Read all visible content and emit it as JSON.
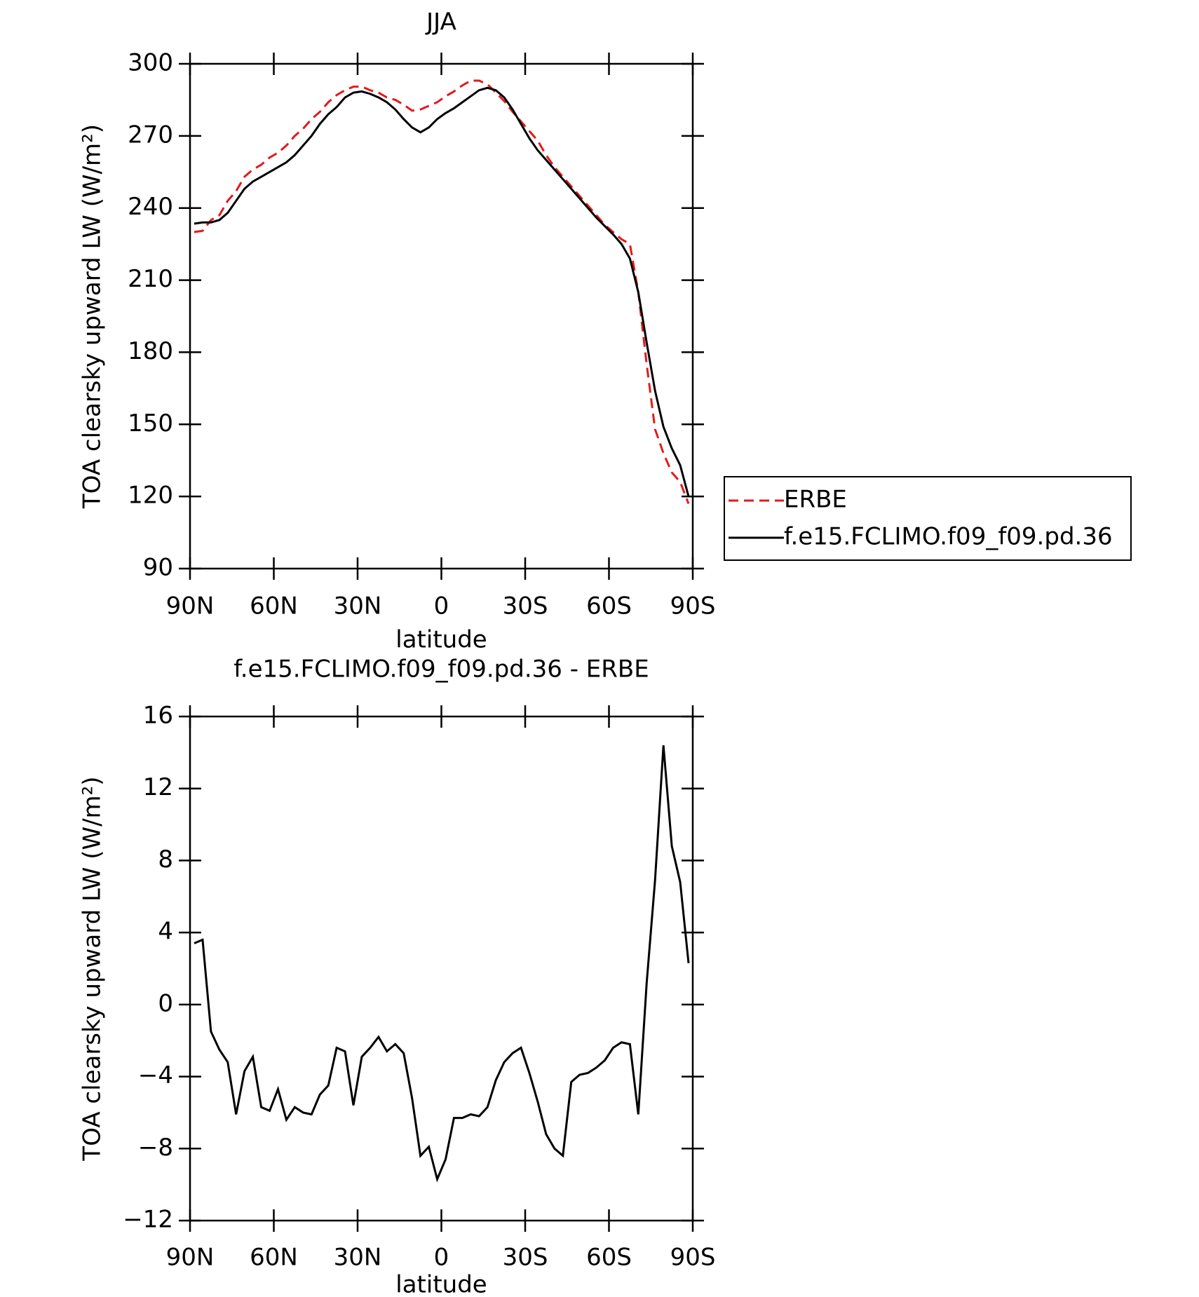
{
  "chart_data": [
    {
      "type": "line",
      "title": "JJA",
      "x_label": "latitude",
      "y_label": "TOA clearsky upward LW (W/m²)",
      "x": [
        88.5,
        85.5,
        82.5,
        79.5,
        76.5,
        73.5,
        70.5,
        67.5,
        64.5,
        61.5,
        58.5,
        55.5,
        52.5,
        49.5,
        46.5,
        43.5,
        40.5,
        37.5,
        34.5,
        31.5,
        28.5,
        25.5,
        22.5,
        19.5,
        16.5,
        13.5,
        10.5,
        7.5,
        4.5,
        1.5,
        -1.5,
        -4.5,
        -7.5,
        -10.5,
        -13.5,
        -16.5,
        -19.5,
        -22.5,
        -25.5,
        -28.5,
        -31.5,
        -34.5,
        -37.5,
        -40.5,
        -43.5,
        -46.5,
        -49.5,
        -52.5,
        -55.5,
        -58.5,
        -61.5,
        -64.5,
        -67.5,
        -70.5,
        -73.5,
        -76.5,
        -79.5,
        -82.5,
        -85.5,
        -88.5
      ],
      "series": [
        {
          "name": "ERBE",
          "color": "#e31a1c",
          "dash": true,
          "values": [
            230,
            230.5,
            235,
            237,
            243,
            247,
            253,
            256,
            258,
            261,
            263,
            266,
            270,
            273,
            277,
            280,
            284,
            287,
            289,
            290.5,
            290.5,
            289,
            288,
            286,
            285,
            283,
            280.5,
            281,
            282.5,
            284,
            286.5,
            288.5,
            291,
            293,
            293,
            291.5,
            288,
            284.5,
            280,
            276,
            272,
            268,
            262,
            257,
            253,
            249,
            245,
            241,
            237,
            233,
            230,
            227,
            225,
            205,
            175,
            148,
            138,
            130,
            126,
            117
          ]
        },
        {
          "name": "f.e15.FCLIMO.f09_f09.pd.36",
          "color": "#000000",
          "dash": false,
          "values": [
            233.5,
            234,
            234,
            235,
            238,
            243,
            248,
            251,
            253,
            255,
            257,
            259,
            262,
            266,
            270,
            275,
            279,
            282,
            286,
            288,
            288.5,
            287.5,
            286,
            284,
            281,
            277,
            273.5,
            271.5,
            273.5,
            277,
            279.5,
            281.5,
            284,
            286.5,
            289,
            290,
            289,
            286,
            281,
            275,
            269,
            264,
            260,
            256,
            252,
            248,
            244,
            240,
            236,
            232.5,
            229,
            225,
            219,
            205,
            184,
            164,
            149,
            140,
            133,
            120
          ]
        }
      ],
      "xlim": [
        90,
        -90
      ],
      "xticks": [
        {
          "value": 90,
          "label": "90N"
        },
        {
          "value": 60,
          "label": "60N"
        },
        {
          "value": 30,
          "label": "30N"
        },
        0,
        {
          "value": -30,
          "label": "30S"
        },
        {
          "value": -60,
          "label": "60S"
        },
        {
          "value": -90,
          "label": "90S"
        }
      ],
      "ylim": [
        90,
        300
      ],
      "yticks": [
        90,
        120,
        150,
        180,
        210,
        240,
        270,
        300
      ],
      "legend": "right"
    },
    {
      "type": "line",
      "title": "f.e15.FCLIMO.f09_f09.pd.36 - ERBE",
      "x_label": "latitude",
      "y_label": "TOA clearsky upward LW (W/m²)",
      "x": [
        88.5,
        85.5,
        82.5,
        79.5,
        76.5,
        73.5,
        70.5,
        67.5,
        64.5,
        61.5,
        58.5,
        55.5,
        52.5,
        49.5,
        46.5,
        43.5,
        40.5,
        37.5,
        34.5,
        31.5,
        28.5,
        25.5,
        22.5,
        19.5,
        16.5,
        13.5,
        10.5,
        7.5,
        4.5,
        1.5,
        -1.5,
        -4.5,
        -7.5,
        -10.5,
        -13.5,
        -16.5,
        -19.5,
        -22.5,
        -25.5,
        -28.5,
        -31.5,
        -34.5,
        -37.5,
        -40.5,
        -43.5,
        -46.5,
        -49.5,
        -52.5,
        -55.5,
        -58.5,
        -61.5,
        -64.5,
        -67.5,
        -70.5,
        -73.5,
        -76.5,
        -79.5,
        -82.5,
        -85.5,
        -88.5
      ],
      "values": [
        3.4,
        3.6,
        -1.5,
        -2.5,
        -3.2,
        -6.1,
        -3.7,
        -2.9,
        -5.7,
        -5.9,
        -4.7,
        -6.4,
        -5.7,
        -6.0,
        -6.1,
        -5.0,
        -4.5,
        -2.4,
        -2.6,
        -5.6,
        -2.9,
        -2.4,
        -1.8,
        -2.6,
        -2.2,
        -2.7,
        -5.2,
        -8.4,
        -7.9,
        -9.7,
        -8.6,
        -6.3,
        -6.3,
        -6.1,
        -6.2,
        -5.7,
        -4.2,
        -3.2,
        -2.7,
        -2.4,
        -3.8,
        -5.4,
        -7.2,
        -8.0,
        -8.4,
        -4.3,
        -3.9,
        -3.8,
        -3.5,
        -3.1,
        -2.4,
        -2.1,
        -2.2,
        -6.1,
        1.2,
        6.9,
        14.4,
        8.8,
        6.8,
        2.3
      ],
      "color": "#000000",
      "xlim": [
        90,
        -90
      ],
      "xticks": [
        {
          "value": 90,
          "label": "90N"
        },
        {
          "value": 60,
          "label": "60N"
        },
        {
          "value": 30,
          "label": "30N"
        },
        0,
        {
          "value": -30,
          "label": "30S"
        },
        {
          "value": -60,
          "label": "60S"
        },
        {
          "value": -90,
          "label": "90S"
        }
      ],
      "ylim": [
        -12,
        16
      ],
      "yticks": [
        {
          "value": -12,
          "label": "−12"
        },
        {
          "value": -8,
          "label": "−8"
        },
        {
          "value": -4,
          "label": "−4"
        },
        0,
        4,
        8,
        12,
        16
      ]
    }
  ]
}
